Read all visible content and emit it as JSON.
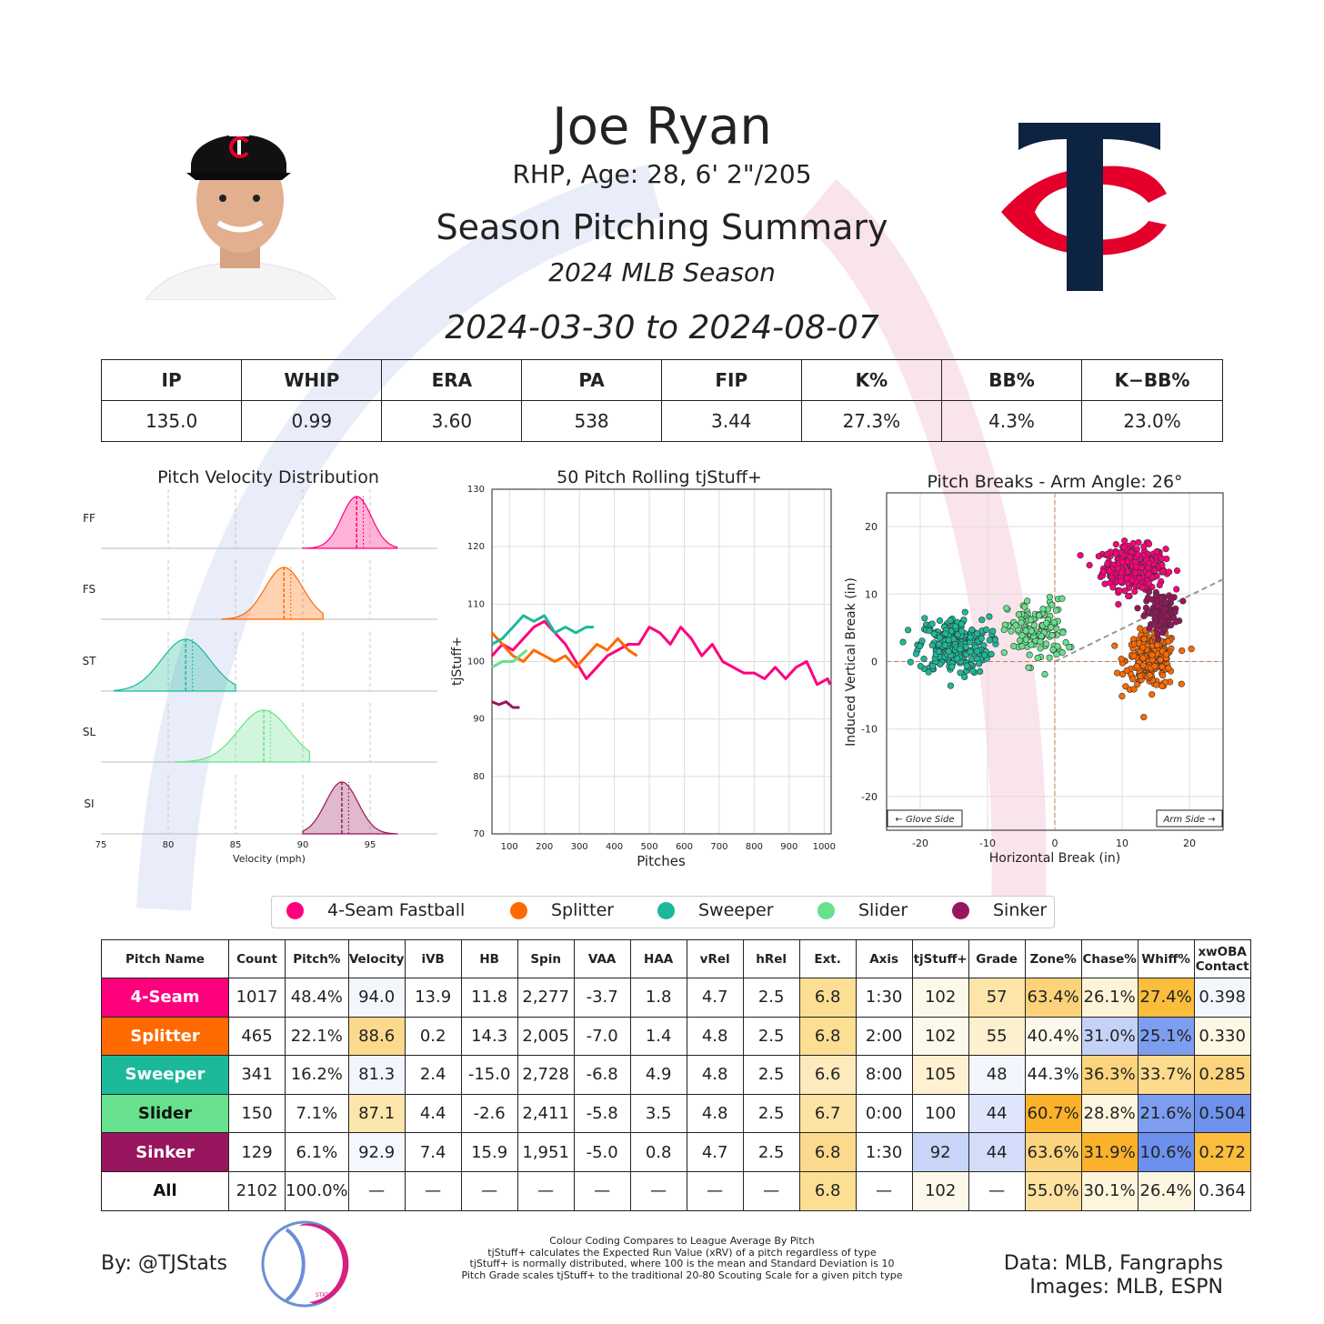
{
  "header": {
    "name": "Joe Ryan",
    "bio": "RHP, Age: 28, 6' 2\"/205",
    "heading": "Season Pitching Summary",
    "season": "2024 MLB Season",
    "date_range": "2024-03-30 to 2024-08-07"
  },
  "colors": {
    "ff": "#ff007d",
    "fs": "#ff6a00",
    "st": "#1bb999",
    "sl": "#67e18d",
    "si": "#98165d",
    "team_navy": "#0c2341",
    "team_red": "#e4002b"
  },
  "season_stats": {
    "headers": [
      "IP",
      "WHIP",
      "ERA",
      "PA",
      "FIP",
      "K%",
      "BB%",
      "K−BB%"
    ],
    "values": [
      "135.0",
      "0.99",
      "3.60",
      "538",
      "3.44",
      "27.3%",
      "4.3%",
      "23.0%"
    ]
  },
  "legend": [
    "4-Seam Fastball",
    "Splitter",
    "Sweeper",
    "Slider",
    "Sinker"
  ],
  "chart_data": [
    {
      "type": "area",
      "title": "Pitch Velocity Distribution",
      "xlabel": "Velocity (mph)",
      "xlim": [
        75,
        100
      ],
      "xticks": [
        "75",
        "80",
        "85",
        "90",
        "95"
      ],
      "series": [
        {
          "name": "FF",
          "color": "#ff007d",
          "mean": 94.0,
          "sd": 1.1,
          "range": [
            90,
            97
          ]
        },
        {
          "name": "FS",
          "color": "#ff6a00",
          "mean": 88.6,
          "sd": 1.4,
          "range": [
            84,
            91.5
          ]
        },
        {
          "name": "ST",
          "color": "#1bb999",
          "mean": 81.3,
          "sd": 1.8,
          "range": [
            76,
            85
          ]
        },
        {
          "name": "SL",
          "color": "#67e18d",
          "mean": 87.1,
          "sd": 1.9,
          "range": [
            80.5,
            90.5
          ]
        },
        {
          "name": "SI",
          "color": "#98165d",
          "mean": 92.9,
          "sd": 1.2,
          "range": [
            90,
            97
          ]
        }
      ]
    },
    {
      "type": "line",
      "title": "50 Pitch Rolling tjStuff+",
      "xlabel": "Pitches",
      "ylabel": "tjStuff+",
      "xlim": [
        50,
        1020
      ],
      "ylim": [
        70,
        130
      ],
      "xticks": [
        "100",
        "200",
        "300",
        "400",
        "500",
        "600",
        "700",
        "800",
        "900",
        "1000"
      ],
      "yticks": [
        "70",
        "80",
        "90",
        "100",
        "110",
        "120",
        "130"
      ],
      "series": [
        {
          "name": "4-Seam Fastball",
          "color": "#ff007d",
          "x": [
            50,
            80,
            110,
            140,
            170,
            200,
            230,
            260,
            290,
            320,
            350,
            380,
            410,
            440,
            470,
            500,
            530,
            560,
            590,
            620,
            650,
            680,
            710,
            740,
            770,
            800,
            830,
            860,
            890,
            920,
            950,
            980,
            1010,
            1017
          ],
          "y": [
            101,
            103,
            102,
            104,
            106,
            107,
            105,
            103,
            100,
            97,
            99,
            101,
            102,
            103,
            103,
            106,
            105,
            103,
            106,
            104,
            101,
            103,
            100,
            99,
            98,
            98,
            97,
            99,
            97,
            99,
            100,
            96,
            97,
            96
          ]
        },
        {
          "name": "Splitter",
          "color": "#ff6a00",
          "x": [
            50,
            80,
            110,
            140,
            170,
            200,
            230,
            260,
            290,
            320,
            350,
            380,
            410,
            440,
            465
          ],
          "y": [
            105,
            103,
            101,
            100,
            102,
            101,
            100,
            101,
            99,
            101,
            103,
            102,
            104,
            102,
            101
          ]
        },
        {
          "name": "Sweeper",
          "color": "#1bb999",
          "x": [
            50,
            80,
            110,
            140,
            170,
            200,
            230,
            260,
            290,
            320,
            341
          ],
          "y": [
            103,
            104,
            106,
            108,
            107,
            108,
            105,
            106,
            105,
            106,
            106
          ]
        },
        {
          "name": "Slider",
          "color": "#67e18d",
          "x": [
            50,
            80,
            110,
            130,
            150
          ],
          "y": [
            99,
            100,
            100,
            101,
            102
          ]
        },
        {
          "name": "Sinker",
          "color": "#98165d",
          "x": [
            50,
            70,
            90,
            110,
            129
          ],
          "y": [
            93,
            92.5,
            93,
            92,
            92
          ]
        }
      ]
    },
    {
      "type": "scatter",
      "title": "Pitch Breaks - Arm Angle: 26°",
      "xlabel": "Horizontal Break (in)",
      "ylabel": "Induced Vertical Break (in)",
      "xlim": [
        -25,
        25
      ],
      "ylim": [
        -25,
        25
      ],
      "xticks": [
        "-20",
        "-10",
        "0",
        "10",
        "20"
      ],
      "yticks": [
        "-20",
        "-10",
        "0",
        "10",
        "20"
      ],
      "annotations": [
        "← Glove Side",
        "Arm Side →"
      ],
      "series": [
        {
          "name": "4-Seam Fastball",
          "color": "#ff007d",
          "center": [
            11.8,
            13.9
          ],
          "spread": [
            2.3,
            1.6
          ],
          "n": 320
        },
        {
          "name": "Splitter",
          "color": "#ff6a00",
          "center": [
            14.3,
            0.2
          ],
          "spread": [
            1.9,
            2.1
          ],
          "n": 230
        },
        {
          "name": "Sweeper",
          "color": "#1bb999",
          "center": [
            -15.0,
            2.4
          ],
          "spread": [
            2.6,
            2.1
          ],
          "n": 260
        },
        {
          "name": "Slider",
          "color": "#67e18d",
          "center": [
            -2.6,
            4.4
          ],
          "spread": [
            2.2,
            2.4
          ],
          "n": 130
        },
        {
          "name": "Sinker",
          "color": "#98165d",
          "center": [
            15.9,
            7.4
          ],
          "spread": [
            1.2,
            1.3
          ],
          "n": 110
        }
      ]
    },
    {
      "type": "table",
      "columns": [
        "Pitch Name",
        "Count",
        "Pitch%",
        "Velocity",
        "iVB",
        "HB",
        "Spin",
        "VAA",
        "HAA",
        "vRel",
        "hRel",
        "Ext.",
        "Axis",
        "tjStuff+",
        "Grade",
        "Zone%",
        "Chase%",
        "Whiff%",
        "xwOBA Contact"
      ],
      "rows": [
        {
          "name": "4-Seam",
          "color": "#ff007d",
          "text": "#ffffff",
          "cells": [
            "1017",
            "48.4%",
            "94.0",
            "13.9",
            "11.8",
            "2,277",
            "-3.7",
            "1.8",
            "4.7",
            "2.5",
            "6.8",
            "1:30",
            "102",
            "57",
            "63.4%",
            "26.1%",
            "27.4%",
            "0.398"
          ],
          "bg": [
            "",
            "",
            "#f3f6fd",
            "",
            "",
            "",
            "",
            "",
            "",
            "",
            "#fddf93",
            "",
            "#fdf9ea",
            "#fde5a8",
            "#fcd37a",
            "#fdf3d8",
            "#fbbd3c",
            "#f3f6fd"
          ]
        },
        {
          "name": "Splitter",
          "color": "#ff6a00",
          "text": "#ffffff",
          "cells": [
            "465",
            "22.1%",
            "88.6",
            "0.2",
            "14.3",
            "2,005",
            "-7.0",
            "1.4",
            "4.8",
            "2.5",
            "6.8",
            "2:00",
            "102",
            "55",
            "40.4%",
            "31.0%",
            "25.1%",
            "0.330"
          ],
          "bg": [
            "",
            "",
            "#fcd98c",
            "",
            "",
            "",
            "",
            "",
            "",
            "",
            "#fddf93",
            "",
            "#fdf9ea",
            "#fdf0cf",
            "#fdf9ea",
            "#c3d2f7",
            "#7d9ef0",
            "#fdf7e3"
          ]
        },
        {
          "name": "Sweeper",
          "color": "#1bb999",
          "text": "#ffffff",
          "cells": [
            "341",
            "16.2%",
            "81.3",
            "2.4",
            "-15.0",
            "2,728",
            "-6.8",
            "4.9",
            "4.8",
            "2.5",
            "6.6",
            "8:00",
            "105",
            "48",
            "44.3%",
            "36.3%",
            "33.7%",
            "0.285"
          ],
          "bg": [
            "",
            "",
            "#f1f5fd",
            "",
            "",
            "",
            "",
            "",
            "",
            "",
            "#fdebbd",
            "",
            "#fdf1d2",
            "#f3f6fd",
            "",
            "#fcd47d",
            "#fcdb8e",
            "#fcd47d"
          ]
        },
        {
          "name": "Slider",
          "color": "#67e18d",
          "text": "#111111",
          "cells": [
            "150",
            "7.1%",
            "87.1",
            "4.4",
            "-2.6",
            "2,411",
            "-5.8",
            "3.5",
            "4.8",
            "2.5",
            "6.7",
            "0:00",
            "100",
            "44",
            "60.7%",
            "28.8%",
            "21.6%",
            "0.504"
          ],
          "bg": [
            "",
            "",
            "#fde6ac",
            "",
            "",
            "",
            "",
            "",
            "",
            "",
            "#fde3a2",
            "",
            "",
            "#dfe6fb",
            "#fbb22a",
            "#fdf6e0",
            "#7c9df0",
            "#6e91ee"
          ]
        },
        {
          "name": "Sinker",
          "color": "#98165d",
          "text": "#ffffff",
          "cells": [
            "129",
            "6.1%",
            "92.9",
            "7.4",
            "15.9",
            "1,951",
            "-5.0",
            "0.8",
            "4.7",
            "2.5",
            "6.8",
            "1:30",
            "92",
            "44",
            "63.6%",
            "31.9%",
            "10.6%",
            "0.272"
          ],
          "bg": [
            "",
            "",
            "#f4f7fd",
            "",
            "",
            "",
            "",
            "",
            "",
            "",
            "#fcd98c",
            "",
            "#c6d5f8",
            "#d3ddf9",
            "#fcd47f",
            "#fbb22a",
            "#6d90ee",
            "#fbbd3c"
          ]
        },
        {
          "name": "All",
          "color": "#ffffff",
          "text": "#111111",
          "cells": [
            "2102",
            "100.0%",
            "—",
            "—",
            "—",
            "—",
            "—",
            "—",
            "—",
            "—",
            "6.8",
            "—",
            "102",
            "—",
            "55.0%",
            "30.1%",
            "26.4%",
            "0.364"
          ],
          "bg": [
            "",
            "",
            "",
            "",
            "",
            "",
            "",
            "",
            "",
            "",
            "#fddf93",
            "",
            "#fdf9ea",
            "",
            "#fde1a0",
            "#fdf5dc",
            "#fdf6e0",
            ""
          ]
        }
      ]
    }
  ],
  "footer": {
    "by": "By: @TJStats",
    "notes": [
      "Colour Coding Compares to League Average By Pitch",
      "tjStuff+ calculates the Expected Run Value (xRV) of a pitch regardless of type",
      "tjStuff+ is normally distributed, where 100 is the mean and Standard Deviation is 10",
      "Pitch Grade scales tjStuff+ to the traditional 20-80 Scouting Scale for a given pitch type"
    ],
    "data": "Data: MLB, Fangraphs",
    "images": "Images: MLB, ESPN",
    "logo_text": "STATS"
  }
}
